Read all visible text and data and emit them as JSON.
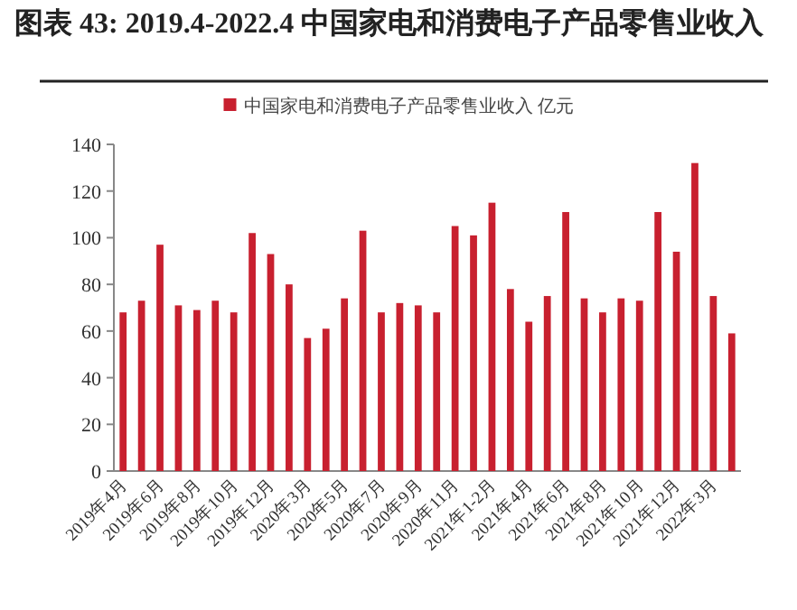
{
  "chart_data": {
    "type": "bar",
    "title": "图表 43: 2019.4-2022.4 中国家电和消费电子产品零售业收入",
    "categories": [
      "2019年4月",
      null,
      "2019年6月",
      null,
      "2019年8月",
      null,
      "2019年10月",
      null,
      "2019年12月",
      null,
      "2020年3月",
      null,
      "2020年5月",
      null,
      "2020年7月",
      null,
      "2020年9月",
      null,
      "2020年11月",
      null,
      "2021年1-2月",
      null,
      "2021年4月",
      null,
      "2021年6月",
      null,
      "2021年8月",
      null,
      "2021年10月",
      null,
      "2021年12月",
      null,
      "2022年3月",
      null
    ],
    "series": [
      {
        "name": "中国家电和消费电子产品零售业收入 亿元",
        "color": "#c8202f",
        "values": [
          68,
          73,
          97,
          71,
          69,
          73,
          68,
          102,
          93,
          80,
          57,
          61,
          74,
          103,
          68,
          72,
          71,
          68,
          105,
          101,
          115,
          78,
          64,
          75,
          111,
          74,
          68,
          74,
          73,
          111,
          94,
          132,
          75,
          59
        ]
      }
    ],
    "ylim": [
      0,
      140
    ],
    "yticks": [
      0,
      20,
      40,
      60,
      80,
      100,
      120,
      140
    ],
    "legend": "top"
  }
}
